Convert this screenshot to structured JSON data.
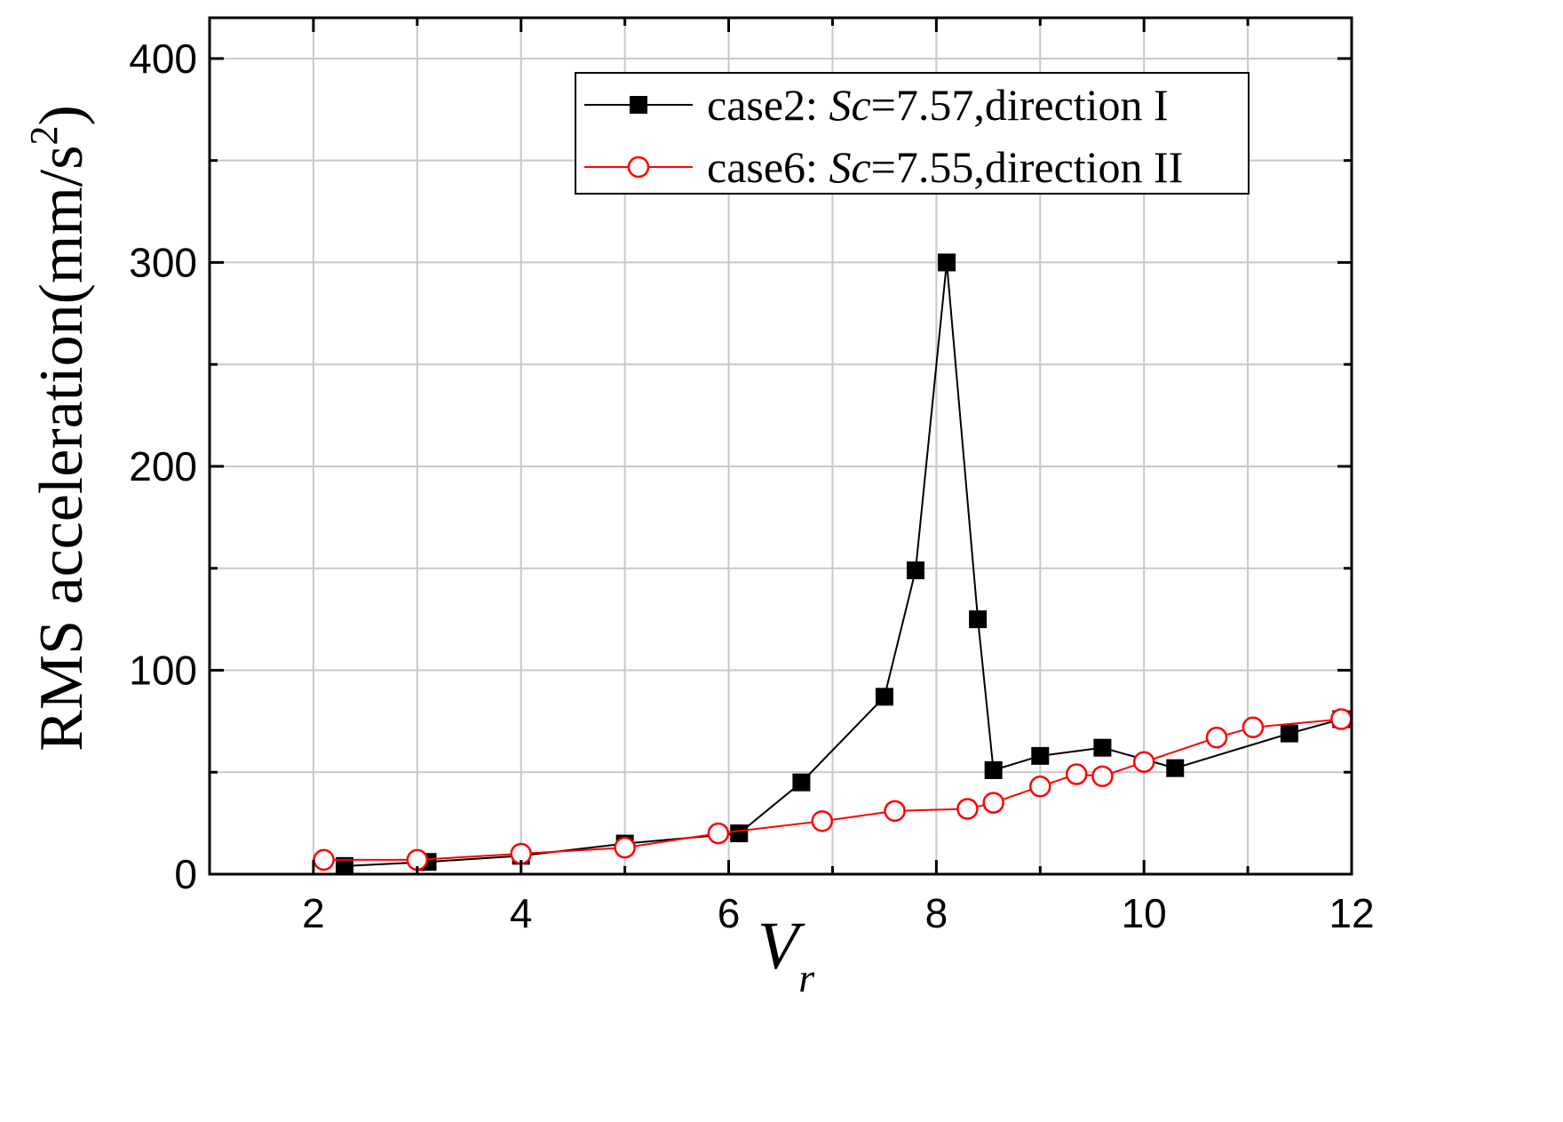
{
  "chart_data": {
    "type": "line",
    "xlabel": "V",
    "xlabel_sub": "r",
    "ylabel": "RMS acceleration(mm/s",
    "ylabel_sup": "2",
    "ylabel_close": ")",
    "xlim": [
      1,
      12
    ],
    "ylim": [
      0,
      420
    ],
    "xticks": [
      2,
      4,
      6,
      8,
      10,
      12
    ],
    "yticks": [
      0,
      100,
      200,
      300,
      400
    ],
    "grid": true,
    "legend_placement": "top-right",
    "series": [
      {
        "name": "case2: Sc=7.57,direction I",
        "legend_prefix": "case2: ",
        "legend_italic": "Sc",
        "legend_suffix": "=7.57,direction I",
        "color": "#000000",
        "marker": "square-filled",
        "x": [
          2.3,
          3.1,
          4.0,
          5.0,
          6.1,
          6.7,
          7.5,
          7.8,
          8.1,
          8.4,
          8.55,
          9.0,
          9.6,
          10.3,
          11.4,
          11.9
        ],
        "y": [
          4,
          6,
          9,
          15,
          20,
          45,
          87,
          149,
          300,
          125,
          51,
          58,
          62,
          52,
          69,
          76
        ]
      },
      {
        "name": "case6: Sc=7.55,direction II",
        "legend_prefix": "case6: ",
        "legend_italic": "Sc",
        "legend_suffix": "=7.55,direction II",
        "color": "#ff0000",
        "marker": "circle-open",
        "x": [
          2.1,
          3.0,
          4.0,
          5.0,
          5.9,
          6.9,
          7.6,
          8.3,
          8.55,
          9.0,
          9.35,
          9.6,
          10.0,
          10.7,
          11.05,
          11.9
        ],
        "y": [
          7,
          7,
          10,
          13,
          20,
          26,
          31,
          32,
          35,
          43,
          49,
          48,
          55,
          67,
          72,
          76
        ]
      }
    ]
  }
}
